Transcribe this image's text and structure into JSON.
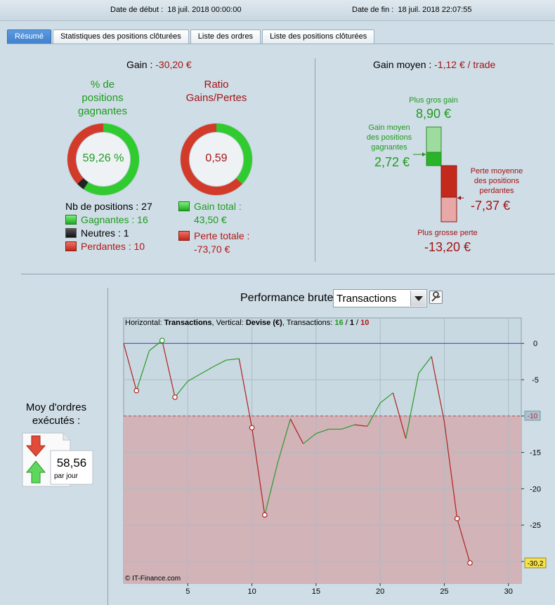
{
  "header": {
    "start_label": "Date de début :",
    "start_value": "18 juil. 2018 00:00:00",
    "end_label": "Date de fin :",
    "end_value": "18 juil. 2018 22:07:55"
  },
  "tabs": [
    {
      "label": "Résumé",
      "active": true
    },
    {
      "label": "Statistiques des positions clôturées",
      "active": false
    },
    {
      "label": "Liste des ordres",
      "active": false
    },
    {
      "label": "Liste des positions clôturées",
      "active": false
    }
  ],
  "summary": {
    "gain_label": "Gain :",
    "gain_value": "-30,20 €",
    "pct_title_line1": "% de",
    "pct_title_line2": "positions",
    "pct_title_line3": "gagnantes",
    "pct_value": "59,26 %",
    "pct_fraction": 0.5926,
    "neutral_fraction": 0.037,
    "ratio_title_line1": "Ratio",
    "ratio_title_line2": "Gains/Pertes",
    "ratio_value": "0,59",
    "ratio_fraction": 0.371,
    "nb_positions": "Nb de positions : 27",
    "gagnantes": "Gagnantes : 16",
    "neutres": "Neutres : 1",
    "perdantes": "Perdantes : 10",
    "gain_total_label": "Gain total :",
    "gain_total_value": "43,50 €",
    "perte_totale_label": "Perte totale :",
    "perte_totale_value": "-73,70 €"
  },
  "avg": {
    "title_label": "Gain moyen :",
    "title_value": "-1,12 € / trade",
    "plus_gros_gain_label": "Plus gros gain",
    "plus_gros_gain_value": "8,90 €",
    "gain_moyen_label_1": "Gain moyen",
    "gain_moyen_label_2": "des positions",
    "gain_moyen_label_3": "gagnantes",
    "gain_moyen_value": "2,72 €",
    "perte_moyenne_label_1": "Perte moyenne",
    "perte_moyenne_label_2": "des positions",
    "perte_moyenne_label_3": "perdantes",
    "perte_moyenne_value": "-7,37 €",
    "plus_grosse_perte_label": "Plus grosse perte",
    "plus_grosse_perte_value": "-13,20 €"
  },
  "orders": {
    "title_line1": "Moy d'ordres",
    "title_line2": "exécutés :",
    "value": "58,56",
    "unit": "par jour"
  },
  "performance": {
    "label": "Performance brute",
    "select_value": "Transactions"
  },
  "chart_data": {
    "type": "line",
    "legend_prefix": "Horizontal:",
    "legend_h": "Transactions",
    "legend_mid": ", Vertical:",
    "legend_v": "Devise (€)",
    "legend_tr": ", Transactions:",
    "legend_win": "16",
    "legend_neu": "1",
    "legend_los": "10",
    "copyright": "© IT-Finance.com",
    "xlim": [
      0,
      31
    ],
    "ylim": [
      -33,
      3.5
    ],
    "x_ticks": [
      5,
      10,
      15,
      20,
      25,
      30
    ],
    "y_ticks": [
      0,
      -5,
      -10,
      -15,
      -20,
      -25,
      -30
    ],
    "threshold": -10,
    "threshold_label": "-10",
    "last_label": "-30,2",
    "points": [
      {
        "x": 0,
        "y": 0
      },
      {
        "x": 1,
        "y": -6.5
      },
      {
        "x": 2,
        "y": -1
      },
      {
        "x": 3,
        "y": 0.4
      },
      {
        "x": 4,
        "y": -7.4
      },
      {
        "x": 5,
        "y": -5.2
      },
      {
        "x": 6,
        "y": -4.2
      },
      {
        "x": 7,
        "y": -3.2
      },
      {
        "x": 8,
        "y": -2.3
      },
      {
        "x": 9,
        "y": -2.1
      },
      {
        "x": 10,
        "y": -11.6
      },
      {
        "x": 11,
        "y": -23.6
      },
      {
        "x": 12,
        "y": -16.5
      },
      {
        "x": 13,
        "y": -10.4
      },
      {
        "x": 14,
        "y": -13.8
      },
      {
        "x": 15,
        "y": -12.4
      },
      {
        "x": 16,
        "y": -11.8
      },
      {
        "x": 17,
        "y": -11.8
      },
      {
        "x": 18,
        "y": -11.2
      },
      {
        "x": 19,
        "y": -11.4
      },
      {
        "x": 20,
        "y": -8.2
      },
      {
        "x": 21,
        "y": -6.8
      },
      {
        "x": 22,
        "y": -13.1
      },
      {
        "x": 23,
        "y": -4.1
      },
      {
        "x": 24,
        "y": -1.8
      },
      {
        "x": 25,
        "y": -10.8
      },
      {
        "x": 26,
        "y": -24.1
      },
      {
        "x": 27,
        "y": -30.2
      }
    ]
  }
}
